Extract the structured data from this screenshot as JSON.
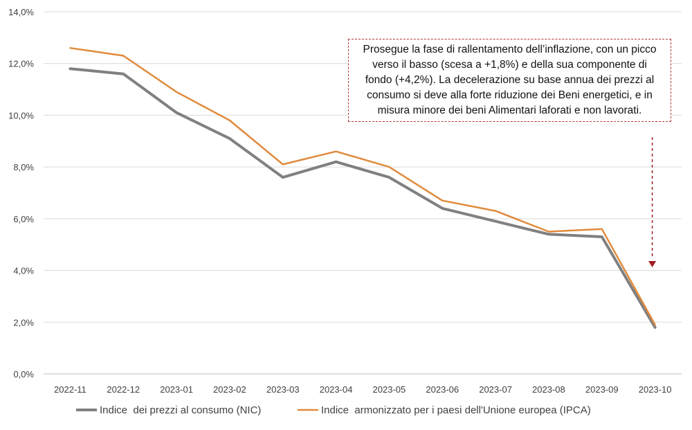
{
  "chart_data": {
    "type": "line",
    "categories": [
      "2022-11",
      "2022-12",
      "2023-01",
      "2023-02",
      "2023-03",
      "2023-04",
      "2023-05",
      "2023-06",
      "2023-07",
      "2023-08",
      "2023-09",
      "2023-10"
    ],
    "series": [
      {
        "name": "Indice  dei prezzi al consumo (NIC)",
        "color": "#808080",
        "values": [
          11.8,
          11.6,
          10.1,
          9.1,
          7.6,
          8.2,
          7.6,
          6.4,
          5.9,
          5.4,
          5.3,
          1.8
        ]
      },
      {
        "name": "Indice  armonizzato per i paesi dell'Unione europea (IPCA)",
        "color": "#e08a3c",
        "values": [
          12.6,
          12.3,
          10.9,
          9.8,
          8.1,
          8.6,
          8.0,
          6.7,
          6.3,
          5.5,
          5.6,
          1.9
        ]
      }
    ],
    "y_ticks": [
      "0,0%",
      "2,0%",
      "4,0%",
      "6,0%",
      "8,0%",
      "10,0%",
      "12,0%",
      "14,0%"
    ],
    "ylim": [
      0,
      14
    ],
    "grid": true,
    "legend_position": "bottom",
    "annotation": "Prosegue la fase di rallentamento dell’inflazione, con un picco verso il basso (scesa a +1,8%) e della sua componente di fondo (+4,2%). La decelerazione su base annua dei prezzi al consumo si deve alla forte riduzione dei Beni energetici, e in misura minore dei beni Alimentari laforati e non lavorati.",
    "annotation_color": "#b2332b",
    "arrow_color": "#a01c1c"
  }
}
